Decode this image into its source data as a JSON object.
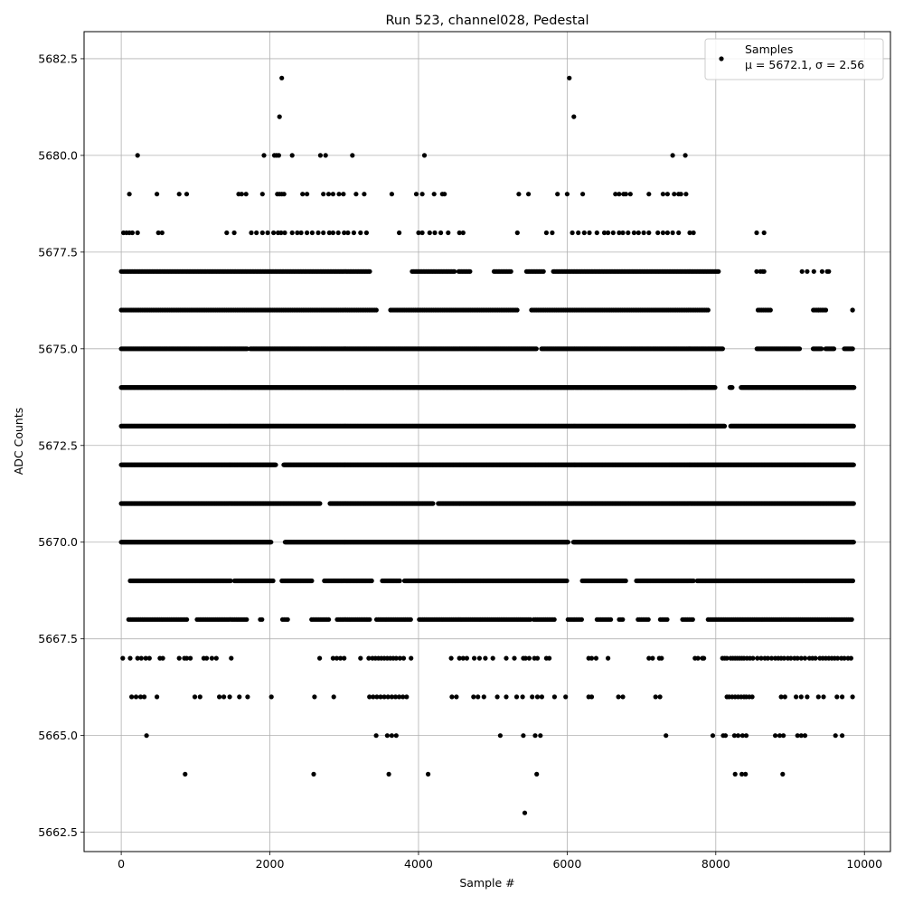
{
  "chart_data": {
    "type": "scatter",
    "title": "Run 523, channel028, Pedestal",
    "xlabel": "Sample #",
    "ylabel": "ADC Counts",
    "xlim": [
      -500,
      10350
    ],
    "ylim": [
      5662.0,
      5683.2
    ],
    "x_ticks": [
      0,
      2000,
      4000,
      6000,
      8000,
      10000
    ],
    "x_tick_labels": [
      "0",
      "2000",
      "4000",
      "6000",
      "8000",
      "10000"
    ],
    "y_ticks": [
      5662.5,
      5665.0,
      5667.5,
      5670.0,
      5672.5,
      5675.0,
      5677.5,
      5680.0,
      5682.5
    ],
    "y_tick_labels": [
      "5662.5",
      "5665.0",
      "5667.5",
      "5670.0",
      "5672.5",
      "5675.0",
      "5677.5",
      "5680.0",
      "5682.5"
    ],
    "grid": true,
    "legend_position": "top-right",
    "marker_color": "#000000",
    "series": [
      {
        "name": "Samples",
        "label": "μ = 5672.1, σ = 2.56",
        "bands": [
          {
            "y": 5682,
            "x": [
              2160,
              6030
            ]
          },
          {
            "y": 5681,
            "x": [
              2130,
              6090
            ]
          },
          {
            "y": 5680,
            "x": [
              220,
              1920,
              2060,
              2090,
              2120,
              2300,
              2680,
              2750,
              3110,
              4080,
              7420,
              7590
            ]
          },
          {
            "y": 5679,
            "x": [
              110,
              480,
              780,
              880,
              1580,
              1620,
              1680,
              1900,
              2100,
              2130,
              2160,
              2190,
              2440,
              2500,
              2720,
              2790,
              2850,
              2930,
              2990,
              3160,
              3270,
              3640,
              3970,
              4050,
              4210,
              4320,
              4350,
              5350,
              5480,
              5870,
              6000,
              6210,
              6650,
              6700,
              6760,
              6790,
              6850,
              7100,
              7290,
              7350,
              7440,
              7500,
              7530,
              7600
            ]
          },
          {
            "y": 5678,
            "x": [
              30,
              70,
              110,
              150,
              220,
              500,
              550,
              1420,
              1520,
              1750,
              1820,
              1900,
              1970,
              2050,
              2110,
              2150,
              2200,
              2300,
              2370,
              2420,
              2500,
              2570,
              2650,
              2720,
              2800,
              2850,
              2920,
              3000,
              3050,
              3130,
              3220,
              3300,
              3740,
              4000,
              4050,
              4150,
              4220,
              4300,
              4400,
              4550,
              4600,
              5330,
              5720,
              5800,
              6070,
              6150,
              6230,
              6300,
              6400,
              6500,
              6550,
              6620,
              6700,
              6750,
              6820,
              6900,
              6960,
              7030,
              7100,
              7220,
              7290,
              7350,
              7420,
              7500,
              7650,
              7700,
              8550,
              8650
            ]
          },
          {
            "start": 0,
            "end": 8050,
            "step": 19,
            "y": 5677,
            "skip": [
              [
                3350,
                3900
              ],
              [
                4500,
                4540
              ],
              [
                4700,
                5000
              ],
              [
                5250,
                5450
              ],
              [
                5700,
                5800
              ]
            ]
          },
          {
            "y": 5677,
            "x": [
              8550,
              8600,
              8630,
              8650,
              9160,
              9230,
              9320,
              9430,
              9500,
              9520
            ]
          },
          {
            "start": 0,
            "end": 9850,
            "step": 24,
            "y": 5676,
            "skip": [
              [
                3450,
                3600
              ],
              [
                5350,
                5500
              ],
              [
                7900,
                8550
              ],
              [
                8750,
                9300
              ],
              [
                9500,
                9830
              ]
            ]
          },
          {
            "y": 5676,
            "x": [
              9380,
              9840
            ]
          },
          {
            "start": 0,
            "end": 9850,
            "step": 14,
            "y": 5675,
            "skip": [
              [
                1700,
                1730
              ],
              [
                5600,
                5650
              ],
              [
                8100,
                8540
              ],
              [
                9130,
                9300
              ],
              [
                9430,
                9470
              ],
              [
                9600,
                9720
              ]
            ]
          },
          {
            "start": 0,
            "end": 9860,
            "step": 10,
            "y": 5674,
            "skip": [
              [
                8000,
                8180
              ],
              [
                8230,
                8330
              ]
            ]
          },
          {
            "start": 0,
            "end": 9860,
            "step": 9,
            "y": 5673,
            "skip": [
              [
                8120,
                8190
              ]
            ]
          },
          {
            "start": 0,
            "end": 9860,
            "step": 9,
            "y": 5672,
            "skip": [
              [
                2080,
                2180
              ]
            ]
          },
          {
            "start": 0,
            "end": 9860,
            "step": 9,
            "y": 5671,
            "skip": [
              [
                2680,
                2800
              ],
              [
                4200,
                4260
              ]
            ]
          },
          {
            "start": 0,
            "end": 9860,
            "step": 9,
            "y": 5670,
            "skip": [
              [
                2020,
                2200
              ],
              [
                6020,
                6080
              ]
            ]
          },
          {
            "start": 120,
            "end": 9850,
            "step": 13,
            "y": 5669,
            "skip": [
              [
                1480,
                1520
              ],
              [
                2050,
                2150
              ],
              [
                2570,
                2720
              ],
              [
                3380,
                3500
              ],
              [
                3750,
                3800
              ],
              [
                6000,
                6200
              ],
              [
                6800,
                6920
              ],
              [
                7700,
                7740
              ]
            ]
          },
          {
            "start": 100,
            "end": 9840,
            "step": 23,
            "y": 5668,
            "skip": [
              [
                900,
                1000
              ],
              [
                1700,
                1850
              ],
              [
                1900,
                2150
              ],
              [
                2250,
                2550
              ],
              [
                2800,
                2900
              ],
              [
                3350,
                3420
              ],
              [
                3900,
                4000
              ],
              [
                5520,
                5550
              ],
              [
                5850,
                6000
              ],
              [
                6200,
                6400
              ],
              [
                6600,
                6700
              ],
              [
                6750,
                6950
              ],
              [
                7100,
                7250
              ],
              [
                7350,
                7550
              ],
              [
                7700,
                7880
              ]
            ]
          },
          {
            "y": 5667,
            "x": [
              20,
              120,
              220,
              270,
              330,
              380,
              520,
              560,
              780,
              850,
              880,
              930,
              1110,
              1150,
              1220,
              1280,
              1480,
              2670,
              2850,
              2900,
              2950,
              3000,
              3220,
              3330,
              3380,
              3420,
              3460,
              3500,
              3540,
              3580,
              3620,
              3660,
              3700,
              3750,
              3800,
              3900,
              4440,
              4550,
              4600,
              4650,
              4750,
              4820,
              4900,
              5000,
              5180,
              5290,
              5410,
              5440,
              5490,
              5560,
              5600,
              5720,
              5760,
              6290,
              6330,
              6390,
              6550,
              7100,
              7150,
              7240,
              7270,
              7720,
              7760,
              7820,
              7840,
              8090,
              8120,
              8150,
              8200,
              8230,
              8260,
              8290,
              8320,
              8350,
              8380,
              8420,
              8460,
              8500,
              8560,
              8610,
              8660,
              8700,
              8750,
              8800,
              8840,
              8880,
              8920,
              8970,
              9010,
              9060,
              9100,
              9150,
              9200,
              9260,
              9300,
              9340,
              9400,
              9440,
              9480,
              9520,
              9560,
              9600,
              9640,
              9690,
              9730,
              9780,
              9820
            ]
          },
          {
            "y": 5666,
            "x": [
              140,
              200,
              260,
              310,
              480,
              990,
              1060,
              1320,
              1380,
              1460,
              1590,
              1700,
              2020,
              2600,
              2860,
              3340,
              3390,
              3440,
              3490,
              3540,
              3590,
              3640,
              3690,
              3740,
              3790,
              3840,
              4450,
              4510,
              4740,
              4800,
              4880,
              5060,
              5180,
              5320,
              5400,
              5530,
              5600,
              5660,
              5830,
              5980,
              6290,
              6330,
              6690,
              6750,
              7190,
              7250,
              8150,
              8180,
              8220,
              8260,
              8300,
              8340,
              8380,
              8410,
              8450,
              8490,
              8880,
              8930,
              9080,
              9150,
              9230,
              9380,
              9450,
              9630,
              9700,
              9840
            ]
          },
          {
            "y": 5665,
            "x": [
              340,
              3430,
              3580,
              3640,
              3700,
              5100,
              5410,
              5570,
              5640,
              7330,
              7960,
              8100,
              8130,
              8250,
              8300,
              8360,
              8410,
              8800,
              8860,
              8910,
              9100,
              9150,
              9200,
              9610,
              9700
            ]
          },
          {
            "y": 5664,
            "x": [
              860,
              2590,
              3600,
              4130,
              5590,
              8260,
              8350,
              8400,
              8900
            ]
          },
          {
            "y": 5663,
            "x": [
              5430
            ]
          }
        ]
      }
    ]
  }
}
